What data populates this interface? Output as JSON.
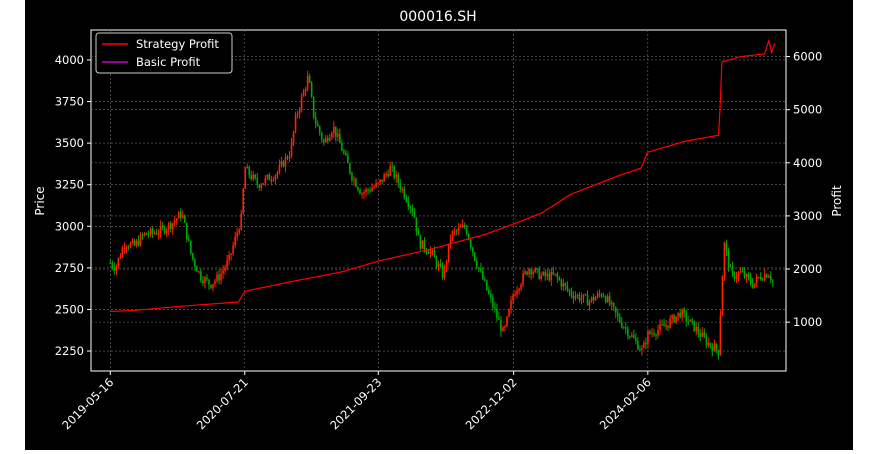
{
  "chart_data": {
    "type": "line",
    "title": "000016.SH",
    "xlabel": "",
    "ylabel": "Price",
    "y2label": "Profit",
    "x_tick_labels": [
      "2019-05-16",
      "2020-07-21",
      "2021-09-23",
      "2022-12-02",
      "2024-02-06"
    ],
    "ylim": [
      2130,
      4180
    ],
    "y_ticks": [
      2250,
      2500,
      2750,
      3000,
      3250,
      3500,
      3750,
      4000
    ],
    "y2lim": [
      80,
      6500
    ],
    "y2_ticks": [
      1000,
      2000,
      3000,
      4000,
      5000,
      6000
    ],
    "grid": true,
    "legend_position": "top-left",
    "colors": {
      "background": "#000000",
      "strategy": "#ff0000",
      "basic": "#cc00cc",
      "candle_up": "#ff2200",
      "candle_down": "#00aa00",
      "grid": "#6e6e6e"
    },
    "series": [
      {
        "name": "Strategy Profit",
        "axis": "right",
        "x": [
          "2019-05-16",
          "2019-08-01",
          "2020-01-01",
          "2020-07-01",
          "2020-07-21",
          "2021-01-01",
          "2021-06-01",
          "2021-09-23",
          "2022-03-01",
          "2022-09-01",
          "2022-12-02",
          "2023-03-01",
          "2023-06-01",
          "2023-11-01",
          "2024-01-15",
          "2024-02-06",
          "2024-06-01",
          "2024-09-20",
          "2024-09-25",
          "2024-10-01",
          "2024-12-01",
          "2025-02-15",
          "2025-03-01",
          "2025-03-10",
          "2025-03-20"
        ],
        "values": [
          1200,
          1220,
          1300,
          1380,
          1580,
          1780,
          1950,
          2150,
          2360,
          2650,
          2850,
          3050,
          3400,
          3750,
          3900,
          4200,
          4400,
          4520,
          5000,
          5900,
          6000,
          6050,
          6300,
          6080,
          6250
        ]
      },
      {
        "name": "Basic Profit",
        "axis": "right",
        "x": [],
        "values": []
      },
      {
        "name": "Price",
        "axis": "left",
        "type": "candlestick",
        "x": [
          "2019-05-16",
          "2019-06-01",
          "2019-07-01",
          "2019-08-01",
          "2019-09-01",
          "2019-10-01",
          "2019-11-01",
          "2019-12-01",
          "2020-01-01",
          "2020-02-01",
          "2020-03-01",
          "2020-04-01",
          "2020-05-01",
          "2020-06-01",
          "2020-07-10",
          "2020-07-21",
          "2020-09-01",
          "2020-11-01",
          "2020-12-15",
          "2021-01-01",
          "2021-02-10",
          "2021-03-01",
          "2021-04-01",
          "2021-05-01",
          "2021-06-01",
          "2021-07-01",
          "2021-08-01",
          "2021-09-23",
          "2021-11-01",
          "2021-12-15",
          "2022-01-15",
          "2022-02-01",
          "2022-03-10",
          "2022-04-20",
          "2022-05-15",
          "2022-06-30",
          "2022-08-01",
          "2022-10-31",
          "2022-12-02",
          "2023-01-20",
          "2023-03-01",
          "2023-04-15",
          "2023-06-01",
          "2023-08-01",
          "2023-09-15",
          "2023-11-01",
          "2024-01-20",
          "2024-02-06",
          "2024-04-01",
          "2024-05-20",
          "2024-07-01",
          "2024-08-15",
          "2024-09-20",
          "2024-10-08",
          "2024-11-01",
          "2024-12-01",
          "2025-01-10",
          "2025-02-01",
          "2025-03-01",
          "2025-03-20"
        ],
        "values": [
          2780,
          2750,
          2900,
          2880,
          2950,
          2960,
          2980,
          3020,
          3080,
          2820,
          2700,
          2650,
          2700,
          2800,
          3050,
          3350,
          3250,
          3320,
          3450,
          3650,
          3900,
          3650,
          3500,
          3600,
          3450,
          3300,
          3200,
          3250,
          3350,
          3200,
          3080,
          2900,
          2850,
          2700,
          2950,
          3000,
          2800,
          2350,
          2600,
          2750,
          2700,
          2700,
          2600,
          2550,
          2600,
          2450,
          2250,
          2350,
          2400,
          2480,
          2400,
          2300,
          2250,
          2900,
          2700,
          2720,
          2650,
          2700,
          2720,
          2640
        ]
      }
    ]
  }
}
